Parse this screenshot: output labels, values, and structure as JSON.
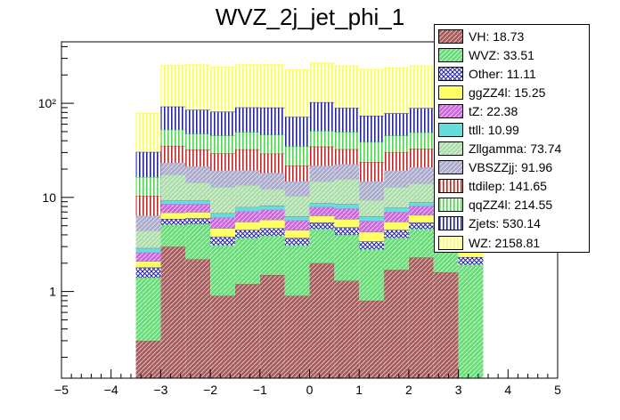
{
  "chart_data": {
    "type": "bar",
    "subtype": "stacked-histogram",
    "title": "WVZ_2j_jet_phi_1",
    "xlabel": "",
    "ylabel": "",
    "xlim": [
      -5,
      5
    ],
    "ylim": [
      0.12,
      450
    ],
    "yscale": "log",
    "grid": false,
    "legend_position": "top-right",
    "bin_edges": [
      -3.5,
      -3.0,
      -2.5,
      -2.0,
      -1.5,
      -1.0,
      -0.5,
      0.0,
      0.5,
      1.0,
      1.5,
      2.0,
      2.5,
      3.0,
      3.5
    ],
    "x_ticks": [
      "−5",
      "−4",
      "−3",
      "−2",
      "−1",
      "0",
      "1",
      "2",
      "3",
      "4",
      "5"
    ],
    "x_tick_values": [
      -5,
      -4,
      -3,
      -2,
      -1,
      0,
      1,
      2,
      3,
      4,
      5
    ],
    "y_ticks": [
      "1",
      "10",
      "10²"
    ],
    "y_tick_values": [
      1,
      10,
      100
    ],
    "series": [
      {
        "name": "VH: 18.73",
        "color": "#a65c5c",
        "pattern": "diag",
        "values": [
          0.3,
          3.0,
          2.2,
          0.9,
          1.2,
          1.5,
          0.9,
          2.0,
          1.3,
          0.8,
          1.7,
          2.3,
          1.6,
          0.12
        ]
      },
      {
        "name": "WVZ: 33.51",
        "color": "#66dd77",
        "pattern": "diag",
        "values": [
          1.1,
          2.1,
          3.0,
          2.2,
          2.5,
          2.4,
          2.2,
          2.6,
          2.7,
          2.0,
          2.0,
          2.3,
          2.6,
          1.8
        ]
      },
      {
        "name": "Other: 11.11",
        "color": "#2222aa",
        "pattern": "cross",
        "values": [
          0.4,
          0.8,
          0.8,
          0.7,
          0.8,
          0.8,
          0.6,
          0.8,
          0.8,
          0.6,
          0.8,
          0.8,
          0.7,
          0.4
        ]
      },
      {
        "name": "ggZZ4l: 15.25",
        "color": "#ffff66",
        "pattern": "solid",
        "values": [
          0.3,
          1.0,
          1.0,
          0.9,
          1.0,
          1.1,
          0.8,
          1.0,
          1.1,
          0.9,
          1.0,
          1.1,
          1.0,
          0.3
        ]
      },
      {
        "name": "tZ: 22.38",
        "color": "#cc66dd",
        "pattern": "diag",
        "values": [
          0.5,
          1.6,
          1.5,
          1.4,
          1.6,
          1.6,
          1.2,
          1.5,
          1.7,
          1.3,
          1.5,
          1.6,
          1.5,
          0.5
        ]
      },
      {
        "name": "ttll: 10.99",
        "color": "#66dddd",
        "pattern": "solid",
        "values": [
          0.3,
          0.8,
          0.8,
          0.7,
          0.8,
          0.8,
          0.6,
          0.8,
          0.9,
          0.7,
          0.8,
          0.8,
          0.8,
          0.3
        ]
      },
      {
        "name": "Zllgamma: 73.74",
        "color": "#aaddaa",
        "pattern": "diag",
        "values": [
          1.5,
          8.0,
          5.0,
          6.0,
          5.5,
          4.0,
          4.0,
          6.0,
          7.0,
          3.0,
          5.0,
          5.0,
          6.5,
          1.5
        ]
      },
      {
        "name": "VBSZZjj: 91.96",
        "color": "#aaaacc",
        "pattern": "diag",
        "values": [
          2.0,
          6.0,
          7.0,
          6.5,
          6.0,
          6.0,
          4.5,
          7.0,
          7.0,
          5.5,
          6.5,
          7.0,
          7.0,
          2.0
        ]
      },
      {
        "name": "ttdilep: 141.65",
        "color": "#cc2222",
        "pattern": "vert",
        "values": [
          4.0,
          12.0,
          11.0,
          10.0,
          13.0,
          11.0,
          7.0,
          13.0,
          10.0,
          9.0,
          11.0,
          12.0,
          11.0,
          3.5
        ]
      },
      {
        "name": "qqZZ4l: 214.55",
        "color": "#44dd44",
        "pattern": "vert",
        "values": [
          6.0,
          17.0,
          15.0,
          16.0,
          17.0,
          17.0,
          13.0,
          16.0,
          17.0,
          15.0,
          15.0,
          16.0,
          16.0,
          6.0
        ]
      },
      {
        "name": "Zjets: 530.14",
        "color": "#2222aa",
        "pattern": "vert",
        "values": [
          14.0,
          40.0,
          38.0,
          36.0,
          41.0,
          44.0,
          37.0,
          52.0,
          40.0,
          35.0,
          33.0,
          40.0,
          37.0,
          4.0
        ]
      },
      {
        "name": "WZ: 2158.81",
        "color": "#ffff44",
        "pattern": "vert",
        "values": [
          48.0,
          160.0,
          170.0,
          160.0,
          165.0,
          165.0,
          155.0,
          165.0,
          160.0,
          155.0,
          160.0,
          160.0,
          150.0,
          28.0
        ]
      }
    ]
  }
}
